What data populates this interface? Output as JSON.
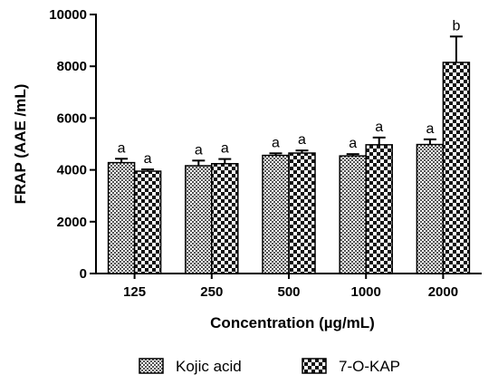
{
  "chart_data": {
    "type": "bar",
    "xlabel": "Concentration (µg/mL)",
    "ylabel": "FRAP (AAE /mL)",
    "ylim": [
      0,
      10000
    ],
    "yticks": [
      "0",
      "2000",
      "4000",
      "6000",
      "8000",
      "10000"
    ],
    "categories": [
      "125",
      "250",
      "500",
      "1000",
      "2000"
    ],
    "legend_position": "bottom",
    "series": [
      {
        "name": "Kojic acid",
        "pattern": "fine-checker",
        "values": [
          4280,
          4160,
          4560,
          4540,
          4980
        ],
        "errors": [
          150,
          200,
          80,
          70,
          200
        ],
        "sig_labels": [
          "a",
          "a",
          "a",
          "a",
          "a"
        ]
      },
      {
        "name": "7-O-KAP",
        "pattern": "coarse-checker",
        "values": [
          3950,
          4240,
          4650,
          4970,
          8150
        ],
        "errors": [
          70,
          180,
          100,
          280,
          1000
        ],
        "sig_labels": [
          "a",
          "a",
          "a",
          "a",
          "b"
        ]
      }
    ]
  }
}
